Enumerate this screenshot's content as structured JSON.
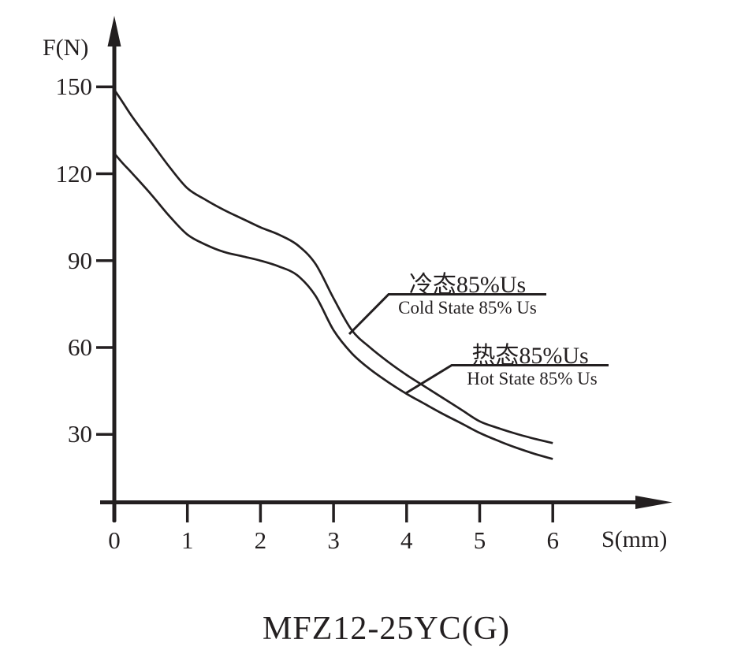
{
  "page": {
    "background": "#ffffff",
    "ink_color": "#231f20"
  },
  "labels": {
    "y_axis": "F(N)",
    "x_axis": "S(mm)",
    "title": "MFZ12-25YC(G)",
    "cold_cn": "冷态85%Us",
    "cold_en": "Cold State 85% Us",
    "hot_cn": "热态85%Us",
    "hot_en": "Hot State 85% Us"
  },
  "chart_data": {
    "type": "line",
    "title": "MFZ12-25YC(G)",
    "xlabel": "S(mm)",
    "ylabel": "F(N)",
    "x_ticks": [
      0,
      1,
      2,
      3,
      4,
      5,
      6
    ],
    "y_ticks": [
      150,
      120,
      90,
      60,
      30
    ],
    "xlim": [
      0,
      6.4
    ],
    "ylim": [
      0,
      165
    ],
    "grid": false,
    "legend_position": "inline-callouts",
    "line_color": "#231f20",
    "series": [
      {
        "name_cn": "冷态85%Us",
        "name_en": "Cold State 85% Us",
        "points": [
          [
            0,
            149
          ],
          [
            0.12,
            144.5
          ],
          [
            0.25,
            139.5
          ],
          [
            0.5,
            131
          ],
          [
            0.75,
            122.5
          ],
          [
            1,
            115
          ],
          [
            1.25,
            111
          ],
          [
            1.5,
            107.5
          ],
          [
            1.75,
            104.5
          ],
          [
            2,
            101.5
          ],
          [
            2.25,
            99
          ],
          [
            2.5,
            95.5
          ],
          [
            2.75,
            89
          ],
          [
            3,
            77
          ],
          [
            3.25,
            66
          ],
          [
            3.5,
            60
          ],
          [
            3.75,
            55
          ],
          [
            4,
            50.5
          ],
          [
            4.25,
            46.5
          ],
          [
            4.5,
            42.5
          ],
          [
            4.75,
            38.5
          ],
          [
            5,
            34.5
          ],
          [
            5.25,
            32.2
          ],
          [
            5.5,
            30.2
          ],
          [
            5.75,
            28.5
          ],
          [
            6,
            27
          ]
        ]
      },
      {
        "name_cn": "热态85%Us",
        "name_en": "Hot State 85% Us",
        "points": [
          [
            0,
            127
          ],
          [
            0.12,
            123.5
          ],
          [
            0.25,
            120
          ],
          [
            0.5,
            113
          ],
          [
            0.75,
            105.5
          ],
          [
            1,
            99
          ],
          [
            1.25,
            95.5
          ],
          [
            1.5,
            93
          ],
          [
            1.75,
            91.5
          ],
          [
            2,
            90
          ],
          [
            2.25,
            88
          ],
          [
            2.5,
            85
          ],
          [
            2.75,
            78
          ],
          [
            3,
            66
          ],
          [
            3.25,
            58
          ],
          [
            3.5,
            52.5
          ],
          [
            3.75,
            48
          ],
          [
            4,
            44
          ],
          [
            4.25,
            40.5
          ],
          [
            4.5,
            37
          ],
          [
            4.75,
            33.8
          ],
          [
            5,
            30.5
          ],
          [
            5.25,
            27.8
          ],
          [
            5.5,
            25.4
          ],
          [
            5.75,
            23.3
          ],
          [
            6,
            21.5
          ]
        ]
      }
    ]
  }
}
